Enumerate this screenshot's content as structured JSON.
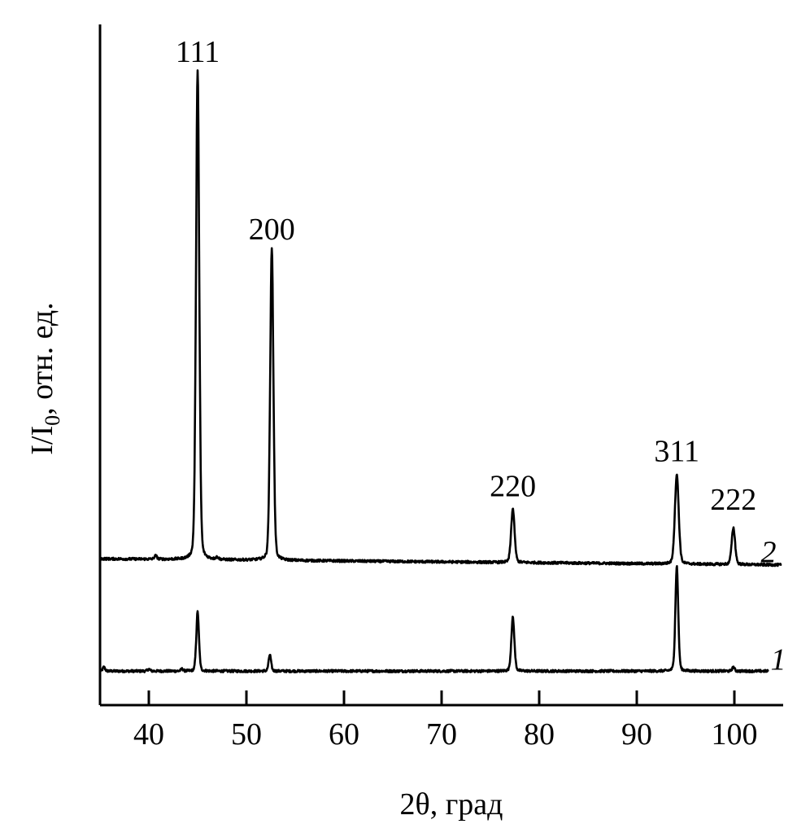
{
  "chart_data": {
    "type": "line",
    "xlabel": "2θ, град",
    "ylabel_main": "I/I",
    "ylabel_sub": "0",
    "ylabel_rest": ", отн. ед.",
    "xlim": [
      35,
      105
    ],
    "ylim": [
      0,
      100
    ],
    "x_ticks": [
      40,
      50,
      60,
      70,
      80,
      90,
      100
    ],
    "x_tick_labels": [
      "40",
      "50",
      "60",
      "70",
      "80",
      "90",
      "100"
    ],
    "grid": false,
    "series": [
      {
        "name": "1",
        "label_pos": [
          104.5,
          5.2
        ],
        "range": [
          35.0,
          103.5
        ],
        "baseline_start": 5.0,
        "baseline_end": 5.0,
        "peaks": [
          {
            "x": 35.4,
            "h": 0.6,
            "w": 0.12
          },
          {
            "x": 40.0,
            "h": 0.3,
            "w": 0.12
          },
          {
            "x": 43.4,
            "h": 0.3,
            "w": 0.12
          },
          {
            "x": 45.0,
            "h": 8.7,
            "w": 0.14
          },
          {
            "x": 52.4,
            "h": 2.4,
            "w": 0.13
          },
          {
            "x": 77.3,
            "h": 7.9,
            "w": 0.16
          },
          {
            "x": 94.1,
            "h": 15.5,
            "w": 0.15
          },
          {
            "x": 99.9,
            "h": 0.6,
            "w": 0.12
          }
        ]
      },
      {
        "name": "2",
        "label_pos": [
          103.5,
          21.0
        ],
        "range": [
          35.0,
          104.8
        ],
        "baseline_start": 21.5,
        "baseline_end": 20.6,
        "peaks": [
          {
            "x": 40.7,
            "h": 0.5,
            "w": 0.14
          },
          {
            "x": 45.0,
            "h": 72.0,
            "w": 0.17
          },
          {
            "x": 47.0,
            "h": 0.3,
            "w": 0.14
          },
          {
            "x": 52.6,
            "h": 46.0,
            "w": 0.17
          },
          {
            "x": 77.3,
            "h": 7.9,
            "w": 0.18
          },
          {
            "x": 94.1,
            "h": 13.2,
            "w": 0.2
          },
          {
            "x": 99.9,
            "h": 5.4,
            "w": 0.18
          }
        ]
      }
    ],
    "annotations": [
      {
        "text": "111",
        "x": 45.0,
        "y": 94.5
      },
      {
        "text": "200",
        "x": 52.6,
        "y": 68.4
      },
      {
        "text": "220",
        "x": 77.3,
        "y": 30.7
      },
      {
        "text": "311",
        "x": 94.1,
        "y": 35.8
      },
      {
        "text": "222",
        "x": 99.9,
        "y": 28.7
      }
    ]
  }
}
